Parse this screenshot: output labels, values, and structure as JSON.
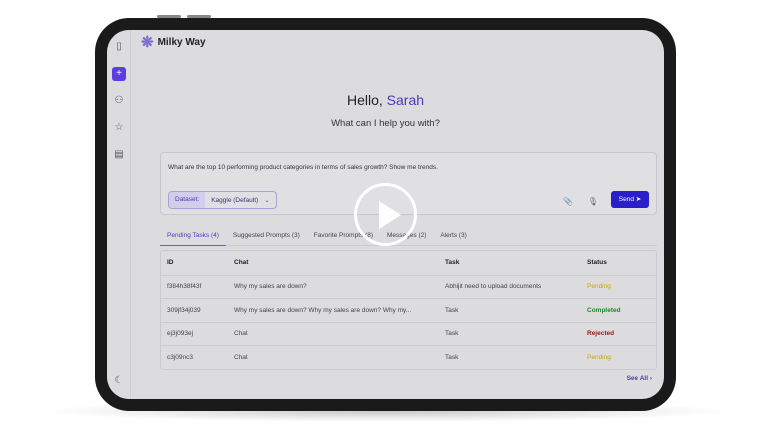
{
  "app": {
    "name": "Milky Way"
  },
  "greeting": {
    "hello": "Hello,",
    "name": "Sarah",
    "subtitle": "What can I help you with?"
  },
  "prompt": {
    "text": "What are the  top 10 performing product categories in terms of sales growth? Show me trends.",
    "dataset_label": "Dataset:",
    "dataset_value": "Kaggle (Default)",
    "send": "Send"
  },
  "tabs": [
    {
      "label": "Pending Tasks (4)"
    },
    {
      "label": "Suggested Prompts (3)"
    },
    {
      "label": "Favorite Prompts (8)"
    },
    {
      "label": "Messages (2)"
    },
    {
      "label": "Alerts (3)"
    }
  ],
  "table": {
    "headers": [
      "ID",
      "Chat",
      "Task",
      "Status"
    ],
    "rows": [
      {
        "id": "f384h38f43f",
        "chat": "Why my sales are down?",
        "task": "Abhijit need to upload documents",
        "status": "Pending"
      },
      {
        "id": "309jf34j039",
        "chat": "Why my sales are down? Why my sales are down? Why my...",
        "task": "Task",
        "status": "Completed"
      },
      {
        "id": "ej3j093ej",
        "chat": "Chat",
        "task": "Task",
        "status": "Rejected"
      },
      {
        "id": "c3j09nc3",
        "chat": "Chat",
        "task": "Task",
        "status": "Pending"
      }
    ]
  },
  "see_all": "See All",
  "colors": {
    "accent": "#4a3ab8",
    "pending": "#c9a800",
    "completed": "#1e8a2a",
    "rejected": "#a3141e",
    "send": "#2a1ec9"
  }
}
